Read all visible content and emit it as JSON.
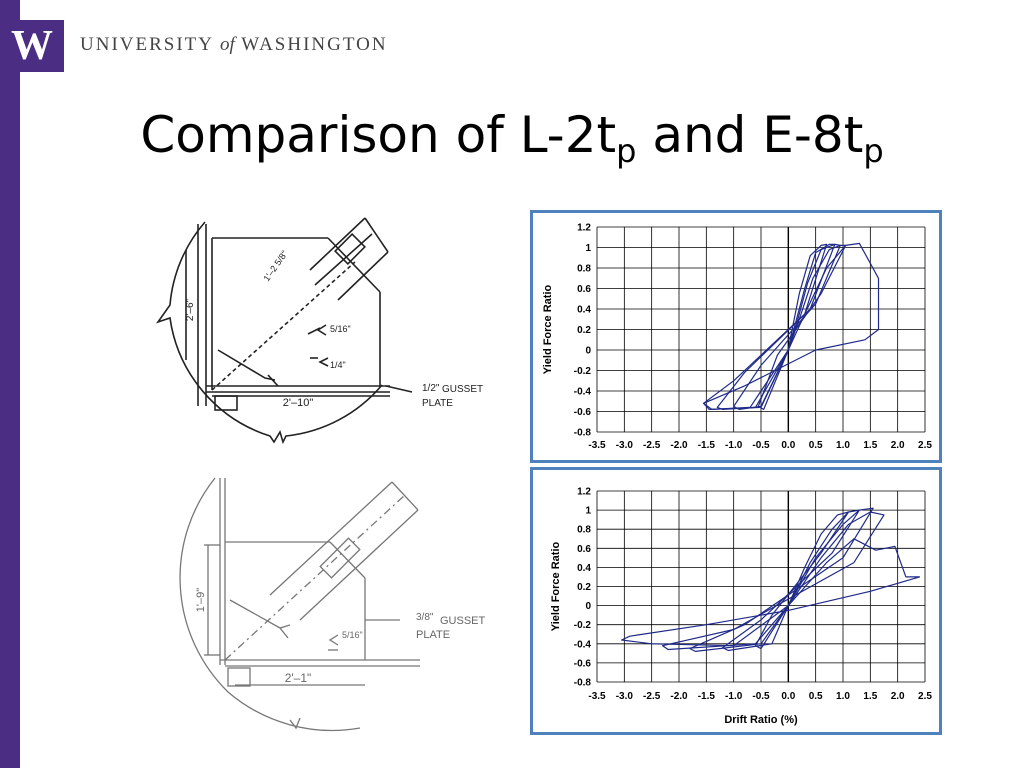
{
  "branding": {
    "logo_letter": "W",
    "university_part1": "UNIVERSITY",
    "university_of": "of",
    "university_part2": "WASHINGTON",
    "brand_color": "#4b2e83"
  },
  "slide": {
    "title_part1": "Comparison of L-2t",
    "title_sub1": "p",
    "title_part2": " and E-8t",
    "title_sub2": "p"
  },
  "drawings": {
    "top": {
      "dim_height": "2'–6\"",
      "dim_length": "2'–10\"",
      "dim_diag": "1'–2 5/8\"",
      "weld_5_16": "5/16\"",
      "weld_1_4": "1/4\"",
      "plate_thickness": "1/2\"",
      "gusset_label": "GUSSET",
      "plate_label": "PLATE"
    },
    "bottom": {
      "dim_height": "1'–9\"",
      "dim_length": "2'–1\"",
      "weld_5_16": "5/16\"",
      "plate_thickness": "3/8\"",
      "gusset_label": "GUSSET",
      "plate_label": "PLATE"
    }
  },
  "chart_data": [
    {
      "type": "line",
      "title": "",
      "xlabel": "",
      "ylabel": "Yield Force Ratio",
      "xlim": [
        -3.5,
        2.5
      ],
      "ylim": [
        -0.8,
        1.2
      ],
      "xticks": [
        "-3.5",
        "-3.0",
        "-2.5",
        "-2.0",
        "-1.5",
        "-1.0",
        "-0.5",
        "0.0",
        "0.5",
        "1.0",
        "1.5",
        "2.0",
        "2.5"
      ],
      "yticks": [
        "1.2",
        "1",
        "0.8",
        "0.6",
        "0.4",
        "0.2",
        "0",
        "-0.2",
        "-0.4",
        "-0.6",
        "-0.8"
      ],
      "grid": true,
      "line_color": "#1f2a8a",
      "series": [
        {
          "x": [
            0.0,
            0.2,
            0.45,
            0.75,
            0.95,
            1.05,
            0.6,
            -0.2,
            -0.55,
            -0.45,
            0.0
          ],
          "y": [
            0.0,
            0.3,
            0.7,
            0.98,
            1.02,
            1.02,
            0.55,
            -0.05,
            -0.55,
            -0.58,
            0.0
          ]
        },
        {
          "x": [
            0.0,
            0.15,
            0.35,
            0.6,
            0.85,
            0.95,
            0.5,
            -0.5,
            -1.0,
            -0.9,
            -0.5,
            0.0
          ],
          "y": [
            0.0,
            0.25,
            0.65,
            0.98,
            1.03,
            1.02,
            0.45,
            -0.15,
            -0.55,
            -0.58,
            -0.55,
            0.0
          ]
        },
        {
          "x": [
            0.0,
            0.1,
            0.3,
            0.5,
            0.75,
            0.85,
            0.4,
            -0.8,
            -1.3,
            -1.2,
            -0.6,
            0.0
          ],
          "y": [
            0.0,
            0.2,
            0.6,
            0.95,
            1.03,
            1.03,
            0.4,
            -0.22,
            -0.56,
            -0.58,
            -0.56,
            0.0
          ]
        },
        {
          "x": [
            0.0,
            0.05,
            0.2,
            0.4,
            0.6,
            0.7,
            0.3,
            -1.0,
            -1.55,
            -1.4,
            -0.7,
            0.0
          ],
          "y": [
            0.0,
            0.15,
            0.55,
            0.92,
            1.02,
            1.03,
            0.35,
            -0.3,
            -0.52,
            -0.58,
            -0.56,
            0.0
          ]
        },
        {
          "x": [
            0.0,
            0.3,
            0.7,
            1.05,
            1.3,
            1.65,
            1.65,
            1.4,
            0.5,
            -0.8,
            -1.55,
            -1.45,
            -0.5,
            0.0
          ],
          "y": [
            0.0,
            0.35,
            0.8,
            1.02,
            1.04,
            0.7,
            0.2,
            0.1,
            0.0,
            -0.35,
            -0.52,
            -0.58,
            -0.56,
            0.0
          ]
        }
      ]
    },
    {
      "type": "line",
      "title": "",
      "xlabel": "Drift Ratio (%)",
      "ylabel": "Yield Force Ratio",
      "xlim": [
        -3.5,
        2.5
      ],
      "ylim": [
        -0.8,
        1.2
      ],
      "xticks": [
        "-3.5",
        "-3.0",
        "-2.5",
        "-2.0",
        "-1.5",
        "-1.0",
        "-0.5",
        "0.0",
        "0.5",
        "1.0",
        "1.5",
        "2.0",
        "2.5"
      ],
      "yticks": [
        "1.2",
        "1",
        "0.8",
        "0.6",
        "0.4",
        "0.2",
        "0",
        "-0.2",
        "-0.4",
        "-0.6",
        "-0.8"
      ],
      "grid": true,
      "line_color": "#1f2a8a",
      "series": [
        {
          "x": [
            0.0,
            0.3,
            0.6,
            0.9,
            1.1,
            0.6,
            -0.3,
            -0.6,
            -0.5,
            0.0
          ],
          "y": [
            0.0,
            0.4,
            0.75,
            0.95,
            0.98,
            0.55,
            -0.1,
            -0.42,
            -0.45,
            0.0
          ]
        },
        {
          "x": [
            0.0,
            0.4,
            0.8,
            1.1,
            1.3,
            0.8,
            -0.5,
            -1.2,
            -1.1,
            -0.3,
            0.0
          ],
          "y": [
            0.0,
            0.45,
            0.8,
            0.98,
            1.0,
            0.55,
            -0.15,
            -0.44,
            -0.47,
            -0.4,
            0.0
          ]
        },
        {
          "x": [
            0.0,
            0.5,
            1.0,
            1.3,
            1.55,
            1.0,
            -0.8,
            -1.8,
            -1.7,
            -0.5,
            0.0
          ],
          "y": [
            0.0,
            0.5,
            0.85,
            1.0,
            1.02,
            0.5,
            -0.2,
            -0.45,
            -0.48,
            -0.4,
            0.0
          ]
        },
        {
          "x": [
            0.0,
            0.6,
            1.1,
            1.5,
            1.75,
            1.2,
            -1.0,
            -2.3,
            -2.2,
            -0.6,
            0.0
          ],
          "y": [
            0.0,
            0.5,
            0.85,
            0.98,
            0.95,
            0.45,
            -0.25,
            -0.42,
            -0.46,
            -0.4,
            0.0
          ]
        },
        {
          "x": [
            0.0,
            0.7,
            1.2,
            1.6,
            1.95,
            2.15,
            2.4,
            1.5,
            0.0,
            -1.5,
            -2.9,
            -3.05,
            -2.5,
            -1.0,
            0.0
          ],
          "y": [
            0.0,
            0.45,
            0.7,
            0.58,
            0.62,
            0.3,
            0.3,
            0.15,
            -0.05,
            -0.2,
            -0.32,
            -0.36,
            -0.4,
            -0.42,
            0.0
          ]
        }
      ]
    }
  ]
}
